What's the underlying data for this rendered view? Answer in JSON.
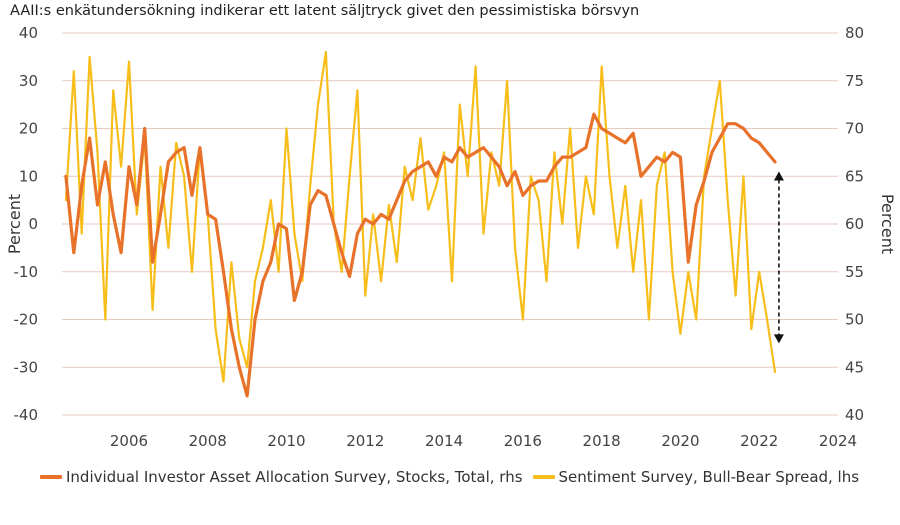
{
  "title": "AAII:s enkätundersökning indikerar ett latent säljtryck givet den pessimistiska börsvyn",
  "colors": {
    "allocation": "#E8722A",
    "sentiment": "#F7BE1B",
    "grid": "#E7C9C0",
    "axis_text": "#444444",
    "arrow": "#111111"
  },
  "chart_data": {
    "type": "line",
    "title": "AAII:s enkätundersökning indikerar ett latent säljtryck givet den pessimistiska börsvyn",
    "ylabel_left": "Percent",
    "ylabel_right": "Percent",
    "ylim_left": [
      -40,
      40
    ],
    "ylim_right": [
      40,
      80
    ],
    "y_ticks_left": [
      "40",
      "30",
      "20",
      "10",
      "0",
      "-10",
      "-20",
      "-30",
      "-40"
    ],
    "y_ticks_right": [
      "80",
      "75",
      "70",
      "65",
      "60",
      "55",
      "50",
      "45",
      "40"
    ],
    "xlim": [
      2004.3,
      2024.0
    ],
    "x_ticks": [
      "2006",
      "2008",
      "2010",
      "2012",
      "2014",
      "2016",
      "2018",
      "2020",
      "2022",
      "2024"
    ],
    "grid": true,
    "legend_position": "bottom",
    "series": [
      {
        "name": "Individual Investor Asset Allocation Survey, Stocks, Total, rhs",
        "axis": "right",
        "x": [
          2004.4,
          2004.6,
          2004.8,
          2005.0,
          2005.2,
          2005.4,
          2005.6,
          2005.8,
          2006.0,
          2006.2,
          2006.4,
          2006.6,
          2006.8,
          2007.0,
          2007.2,
          2007.4,
          2007.6,
          2007.8,
          2008.0,
          2008.2,
          2008.4,
          2008.6,
          2008.8,
          2009.0,
          2009.2,
          2009.4,
          2009.6,
          2009.8,
          2010.0,
          2010.2,
          2010.4,
          2010.6,
          2010.8,
          2011.0,
          2011.2,
          2011.4,
          2011.6,
          2011.8,
          2012.0,
          2012.2,
          2012.4,
          2012.6,
          2012.8,
          2013.0,
          2013.2,
          2013.4,
          2013.6,
          2013.8,
          2014.0,
          2014.2,
          2014.4,
          2014.6,
          2014.8,
          2015.0,
          2015.2,
          2015.4,
          2015.6,
          2015.8,
          2016.0,
          2016.2,
          2016.4,
          2016.6,
          2016.8,
          2017.0,
          2017.2,
          2017.4,
          2017.6,
          2017.8,
          2018.0,
          2018.2,
          2018.4,
          2018.6,
          2018.8,
          2019.0,
          2019.2,
          2019.4,
          2019.6,
          2019.8,
          2020.0,
          2020.2,
          2020.4,
          2020.6,
          2020.8,
          2021.0,
          2021.2,
          2021.4,
          2021.6,
          2021.8,
          2022.0,
          2022.2,
          2022.4
        ],
        "y": [
          65.0,
          57.0,
          64.0,
          69.0,
          62.0,
          66.5,
          61.0,
          57.0,
          66.0,
          62.0,
          70.0,
          56.0,
          61.0,
          66.5,
          67.5,
          68.0,
          63.0,
          68.0,
          61.0,
          60.5,
          55.0,
          49.0,
          45.0,
          42.0,
          50.0,
          54.0,
          56.0,
          60.0,
          59.5,
          52.0,
          55.0,
          62.0,
          63.5,
          63.0,
          60.0,
          57.0,
          54.5,
          59.0,
          60.5,
          60.0,
          61.0,
          60.5,
          62.5,
          64.5,
          65.5,
          66.0,
          66.5,
          65.0,
          67.0,
          66.5,
          68.0,
          67.0,
          67.5,
          68.0,
          67.0,
          66.0,
          64.0,
          65.5,
          63.0,
          64.0,
          64.5,
          64.5,
          66.0,
          67.0,
          67.0,
          67.5,
          68.0,
          71.5,
          70.0,
          69.5,
          69.0,
          68.5,
          69.5,
          65.0,
          66.0,
          67.0,
          66.5,
          67.5,
          67.0,
          56.0,
          62.0,
          64.5,
          67.5,
          69.0,
          70.5,
          70.5,
          70.0,
          69.0,
          68.5,
          67.5,
          66.5
        ]
      },
      {
        "name": "Sentiment Survey, Bull-Bear Spread, lhs",
        "axis": "left",
        "x": [
          2004.4,
          2004.6,
          2004.8,
          2005.0,
          2005.2,
          2005.4,
          2005.6,
          2005.8,
          2006.0,
          2006.2,
          2006.4,
          2006.6,
          2006.8,
          2007.0,
          2007.2,
          2007.4,
          2007.6,
          2007.8,
          2008.0,
          2008.2,
          2008.4,
          2008.6,
          2008.8,
          2009.0,
          2009.2,
          2009.4,
          2009.6,
          2009.8,
          2010.0,
          2010.2,
          2010.4,
          2010.6,
          2010.8,
          2011.0,
          2011.2,
          2011.4,
          2011.6,
          2011.8,
          2012.0,
          2012.2,
          2012.4,
          2012.6,
          2012.8,
          2013.0,
          2013.2,
          2013.4,
          2013.6,
          2013.8,
          2014.0,
          2014.2,
          2014.4,
          2014.6,
          2014.8,
          2015.0,
          2015.2,
          2015.4,
          2015.6,
          2015.8,
          2016.0,
          2016.2,
          2016.4,
          2016.6,
          2016.8,
          2017.0,
          2017.2,
          2017.4,
          2017.6,
          2017.8,
          2018.0,
          2018.2,
          2018.4,
          2018.6,
          2018.8,
          2019.0,
          2019.2,
          2019.4,
          2019.6,
          2019.8,
          2020.0,
          2020.2,
          2020.4,
          2020.6,
          2020.8,
          2021.0,
          2021.2,
          2021.4,
          2021.6,
          2021.8,
          2022.0,
          2022.2,
          2022.4
        ],
        "y": [
          5,
          32,
          -2,
          35,
          15,
          -20,
          28,
          12,
          34,
          2,
          18,
          -18,
          12,
          -5,
          17,
          10,
          -10,
          16,
          2,
          -22,
          -33,
          -8,
          -24,
          -30,
          -12,
          -5,
          5,
          -10,
          20,
          -2,
          -12,
          8,
          25,
          36,
          0,
          -10,
          10,
          28,
          -15,
          2,
          -12,
          4,
          -8,
          12,
          5,
          18,
          3,
          8,
          15,
          -12,
          25,
          10,
          33,
          -2,
          15,
          8,
          30,
          -5,
          -20,
          10,
          5,
          -12,
          15,
          0,
          20,
          -5,
          10,
          2,
          33,
          10,
          -5,
          8,
          -10,
          5,
          -20,
          8,
          15,
          -10,
          -23,
          -10,
          -20,
          10,
          20,
          30,
          5,
          -15,
          10,
          -22,
          -10,
          -20,
          -31
        ]
      }
    ],
    "annotations": [
      {
        "type": "double-arrow",
        "at_x": 2022.5,
        "from_left_value": 11,
        "to_left_value": -25
      }
    ]
  }
}
